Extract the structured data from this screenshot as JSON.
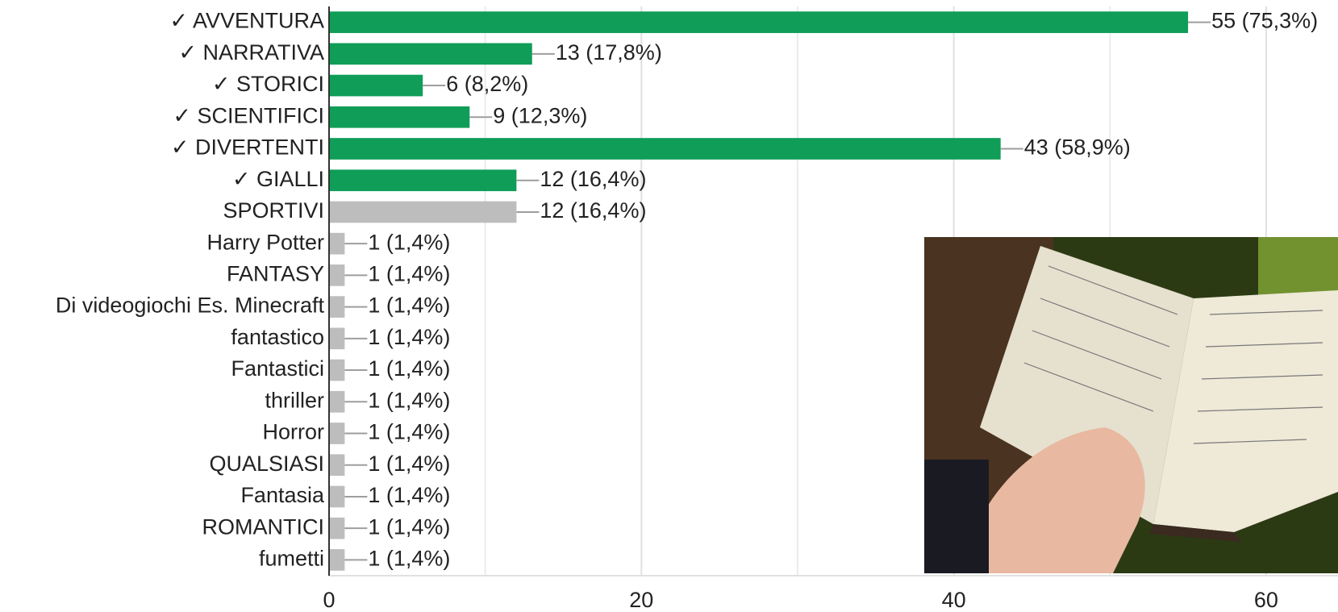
{
  "chart_data": {
    "type": "hbar",
    "categories": [
      "✓ AVVENTURA",
      "✓ NARRATIVA",
      "✓ STORICI",
      "✓ SCIENTIFICI",
      "✓ DIVERTENTI",
      "✓ GIALLI",
      "SPORTIVI",
      "Harry Potter",
      "FANTASY",
      "Di videogiochi Es. Minecraft",
      "fantastico",
      "Fantastici",
      "thriller",
      "Horror",
      "QUALSIASI",
      "Fantasia",
      "ROMANTICI",
      "fumetti"
    ],
    "values": [
      55,
      13,
      6,
      9,
      43,
      12,
      12,
      1,
      1,
      1,
      1,
      1,
      1,
      1,
      1,
      1,
      1,
      1
    ],
    "value_labels": [
      "55 (75,3%)",
      "13 (17,8%)",
      "6 (8,2%)",
      "9 (12,3%)",
      "43 (58,9%)",
      "12 (16,4%)",
      "12 (16,4%)",
      "1 (1,4%)",
      "1 (1,4%)",
      "1 (1,4%)",
      "1 (1,4%)",
      "1 (1,4%)",
      "1 (1,4%)",
      "1 (1,4%)",
      "1 (1,4%)",
      "1 (1,4%)",
      "1 (1,4%)",
      "1 (1,4%)"
    ],
    "colors": [
      "#0f9d58",
      "#0f9d58",
      "#0f9d58",
      "#0f9d58",
      "#0f9d58",
      "#0f9d58",
      "#bdbdbd",
      "#bdbdbd",
      "#bdbdbd",
      "#bdbdbd",
      "#bdbdbd",
      "#bdbdbd",
      "#bdbdbd",
      "#bdbdbd",
      "#bdbdbd",
      "#bdbdbd",
      "#bdbdbd",
      "#bdbdbd"
    ],
    "label_colors": [
      "#0b8043",
      "#0b8043",
      "#0b8043",
      "#0b8043",
      "#0b8043",
      "#0b8043",
      "#9e9e9e",
      "#9e9e9e",
      "#9e9e9e",
      "#9e9e9e",
      "#9e9e9e",
      "#9e9e9e",
      "#9e9e9e",
      "#9e9e9e",
      "#9e9e9e",
      "#9e9e9e",
      "#9e9e9e",
      "#9e9e9e"
    ],
    "xlim": [
      0,
      64.6
    ],
    "xticks": [
      0,
      20,
      40,
      60
    ],
    "minor_xticks": [
      10,
      30,
      50
    ],
    "grid": true
  }
}
